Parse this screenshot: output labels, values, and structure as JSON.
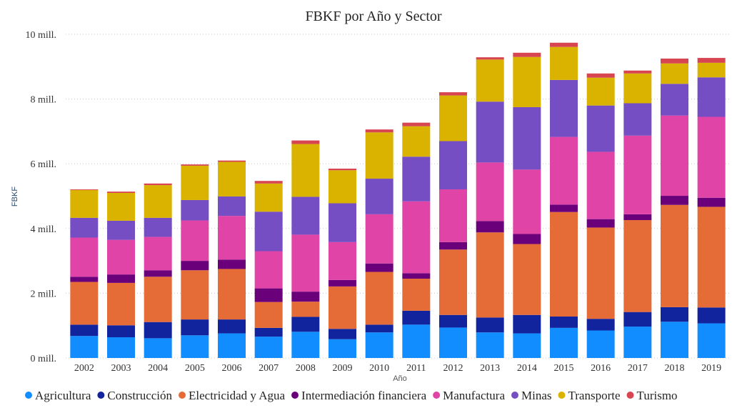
{
  "chart_data": {
    "type": "bar",
    "stacked": true,
    "title": "FBKF por Año y Sector",
    "xlabel": "Año",
    "ylabel": "FBKF",
    "ylim": [
      0,
      10
    ],
    "yticks": [
      {
        "value": 0,
        "label": "0 mill."
      },
      {
        "value": 2,
        "label": "2 mill."
      },
      {
        "value": 4,
        "label": "4 mill."
      },
      {
        "value": 6,
        "label": "6 mill."
      },
      {
        "value": 8,
        "label": "8 mill."
      },
      {
        "value": 10,
        "label": "10 mill."
      }
    ],
    "grid": true,
    "legend_position": "bottom",
    "categories": [
      "2002",
      "2003",
      "2004",
      "2005",
      "2006",
      "2007",
      "2008",
      "2009",
      "2010",
      "2011",
      "2012",
      "2013",
      "2014",
      "2015",
      "2016",
      "2017",
      "2018",
      "2019"
    ],
    "series": [
      {
        "name": "Agricultura",
        "color": "#118DFF",
        "values": [
          0.68,
          0.64,
          0.61,
          0.7,
          0.76,
          0.66,
          0.81,
          0.58,
          0.79,
          1.03,
          0.94,
          0.79,
          0.76,
          0.93,
          0.85,
          0.97,
          1.12,
          1.07
        ]
      },
      {
        "name": "Construcción",
        "color": "#12239E",
        "values": [
          0.35,
          0.37,
          0.5,
          0.49,
          0.43,
          0.27,
          0.46,
          0.32,
          0.24,
          0.43,
          0.39,
          0.46,
          0.57,
          0.35,
          0.36,
          0.45,
          0.45,
          0.49
        ]
      },
      {
        "name": "Electricidad y Agua",
        "color": "#E66C37",
        "values": [
          1.32,
          1.31,
          1.4,
          1.52,
          1.56,
          0.8,
          0.47,
          1.31,
          1.63,
          0.99,
          2.02,
          2.63,
          2.19,
          3.23,
          2.82,
          2.84,
          3.16,
          3.11
        ]
      },
      {
        "name": "Intermediación financiera",
        "color": "#6B007B",
        "values": [
          0.16,
          0.26,
          0.2,
          0.29,
          0.29,
          0.42,
          0.31,
          0.2,
          0.26,
          0.17,
          0.23,
          0.35,
          0.31,
          0.23,
          0.26,
          0.18,
          0.28,
          0.28
        ]
      },
      {
        "name": "Manufactura",
        "color": "#E044A7",
        "values": [
          1.21,
          1.07,
          1.03,
          1.25,
          1.35,
          1.15,
          1.76,
          1.17,
          1.52,
          2.22,
          1.63,
          1.81,
          1.99,
          2.09,
          2.08,
          2.43,
          2.48,
          2.5
        ]
      },
      {
        "name": "Minas",
        "color": "#744EC2",
        "values": [
          0.61,
          0.59,
          0.59,
          0.63,
          0.6,
          1.22,
          1.17,
          1.2,
          1.1,
          1.38,
          1.49,
          1.88,
          1.93,
          1.76,
          1.43,
          1.0,
          0.98,
          1.22
        ]
      },
      {
        "name": "Transporte",
        "color": "#D9B300",
        "values": [
          0.86,
          0.86,
          1.01,
          1.06,
          1.07,
          0.87,
          1.63,
          1.02,
          1.43,
          0.94,
          1.41,
          1.3,
          1.55,
          1.02,
          0.86,
          0.92,
          0.63,
          0.45
        ]
      },
      {
        "name": "Turismo",
        "color": "#D64550",
        "values": [
          0.02,
          0.04,
          0.05,
          0.04,
          0.04,
          0.08,
          0.11,
          0.05,
          0.09,
          0.11,
          0.1,
          0.07,
          0.13,
          0.13,
          0.13,
          0.09,
          0.15,
          0.15
        ]
      }
    ]
  }
}
